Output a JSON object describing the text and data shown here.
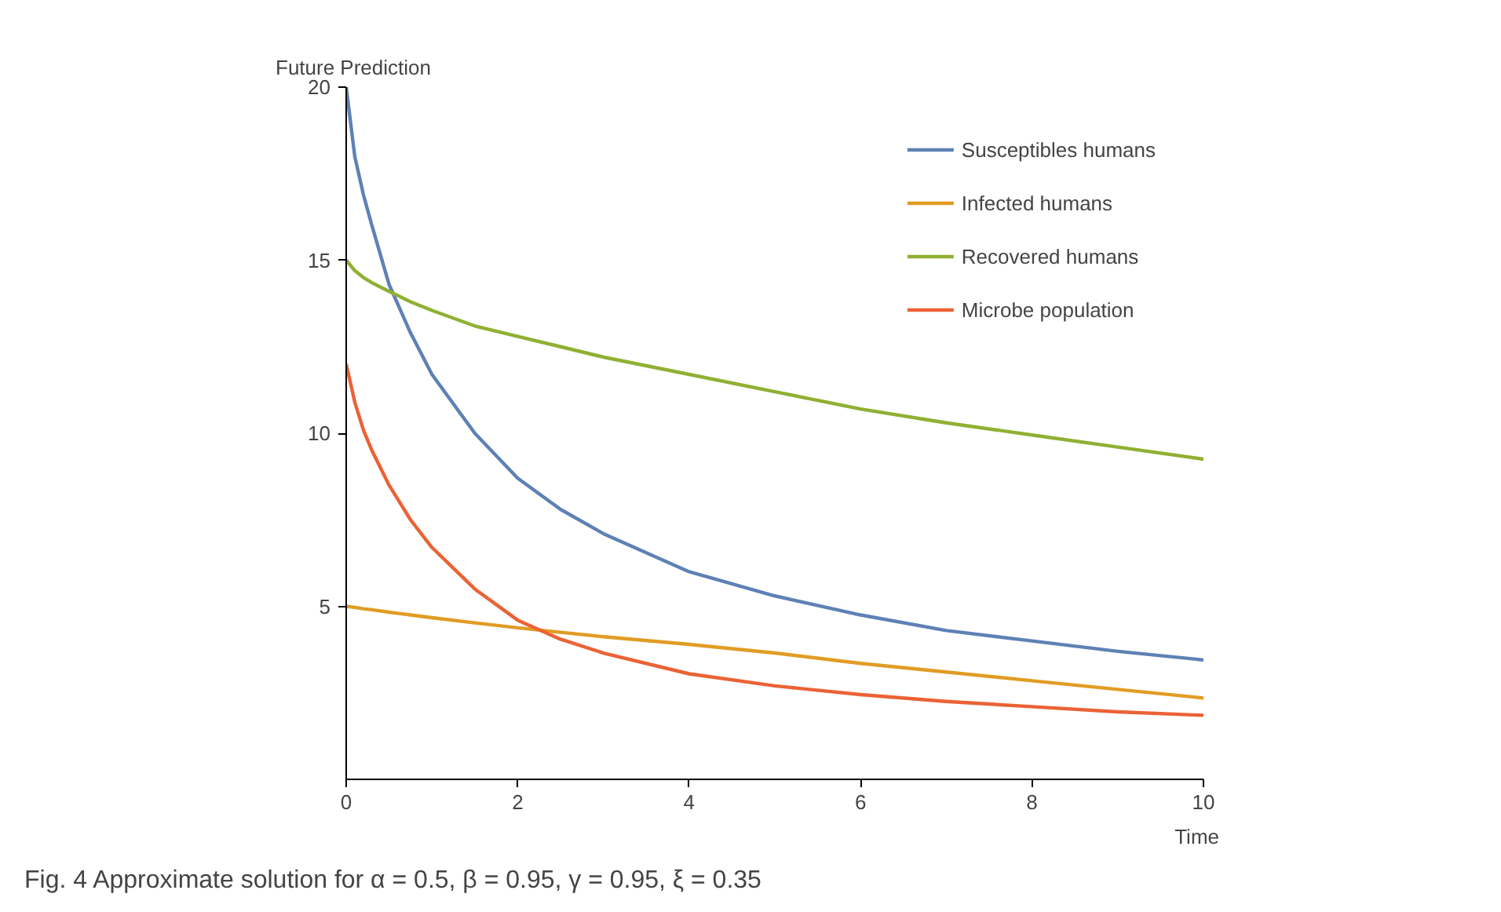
{
  "chart_data": {
    "type": "line",
    "ylabel": "Future Prediction",
    "xlabel": "Time",
    "annotations": [
      "Fig. 4  Approximate solution for α = 0.5, β = 0.95, γ = 0.95, ξ = 0.35"
    ],
    "x": [
      0,
      0.1,
      0.2,
      0.3,
      0.5,
      0.75,
      1,
      1.5,
      2,
      2.5,
      3,
      4,
      5,
      6,
      7,
      8,
      9,
      10
    ],
    "series": [
      {
        "name": "Susceptibles humans",
        "color": "#5e81b5",
        "values": [
          20,
          18.0,
          16.9,
          16.0,
          14.3,
          12.9,
          11.7,
          10.0,
          8.7,
          7.8,
          7.1,
          6.0,
          5.3,
          4.75,
          4.3,
          4.0,
          3.7,
          3.45
        ]
      },
      {
        "name": "Infected humans",
        "color": "#e19c24",
        "values": [
          5,
          4.97,
          4.93,
          4.9,
          4.83,
          4.75,
          4.67,
          4.52,
          4.38,
          4.25,
          4.12,
          3.9,
          3.65,
          3.35,
          3.1,
          2.85,
          2.6,
          2.35
        ]
      },
      {
        "name": "Recovered humans",
        "color": "#8fb032",
        "values": [
          15,
          14.7,
          14.5,
          14.35,
          14.1,
          13.8,
          13.55,
          13.1,
          12.8,
          12.5,
          12.2,
          11.7,
          11.2,
          10.7,
          10.3,
          9.95,
          9.6,
          9.25
        ]
      },
      {
        "name": "Microbe population",
        "color": "#eb6235",
        "values": [
          12,
          10.9,
          10.1,
          9.5,
          8.5,
          7.5,
          6.7,
          5.5,
          4.6,
          4.05,
          3.65,
          3.05,
          2.7,
          2.45,
          2.25,
          2.1,
          1.95,
          1.85
        ]
      }
    ],
    "xlim": [
      0,
      10
    ],
    "ylim": [
      0,
      20
    ],
    "xticks": [
      0,
      2,
      4,
      6,
      8,
      10
    ],
    "yticks": [
      5,
      10,
      15,
      20
    ],
    "legend": "top right",
    "grid": false,
    "marker": "none",
    "line_style": "solid"
  }
}
